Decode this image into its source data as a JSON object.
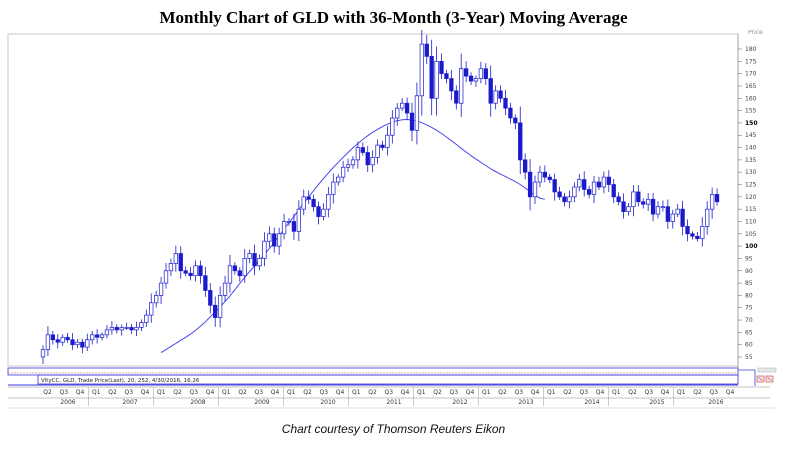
{
  "title": "Monthly Chart of GLD with 36-Month (3-Year) Moving Average",
  "credit": "Chart courtesy of Thomson Reuters Eikon",
  "colors": {
    "candle": "#1a1acc",
    "ma": "#4a4aee",
    "axis": "#777777",
    "lines": "#3a3add"
  },
  "legend": "VltyCC, GLD, Trade Price(Last), 20, 252, 4/30/2016, 16.26",
  "chart_data": {
    "type": "candlestick",
    "ylabel": "Price",
    "ylim": [
      53,
      185
    ],
    "y_ticks": [
      55,
      60,
      65,
      70,
      75,
      80,
      85,
      90,
      95,
      100,
      105,
      110,
      115,
      120,
      125,
      130,
      135,
      140,
      145,
      150,
      155,
      160,
      165,
      170,
      175,
      180
    ],
    "y_bold_ticks": [
      100,
      150
    ],
    "quarter_ticks": [
      "Q2",
      "Q3",
      "Q4",
      "Q1",
      "Q2",
      "Q3",
      "Q4",
      "Q1",
      "Q2",
      "Q3",
      "Q4",
      "Q1",
      "Q2",
      "Q3",
      "Q4",
      "Q1",
      "Q2",
      "Q3",
      "Q4",
      "Q1",
      "Q2",
      "Q3",
      "Q4",
      "Q1",
      "Q2",
      "Q3",
      "Q4",
      "Q1",
      "Q2",
      "Q3",
      "Q4",
      "Q1",
      "Q2",
      "Q3",
      "Q4",
      "Q1",
      "Q2",
      "Q3",
      "Q4",
      "Q1",
      "Q2",
      "Q3",
      "Q4"
    ],
    "year_ticks": [
      "2006",
      "2007",
      "2008",
      "2009",
      "2010",
      "2011",
      "2012",
      "2013",
      "2014",
      "2015",
      "2016"
    ],
    "closes": [
      58,
      64,
      62,
      61,
      63,
      62,
      60,
      61,
      59,
      62,
      64,
      63,
      64,
      66,
      67,
      66,
      67,
      67,
      66,
      67,
      69,
      72,
      77,
      80,
      85,
      90,
      93,
      97,
      90,
      89,
      88,
      92,
      88,
      82,
      76,
      71,
      80,
      85,
      92,
      90,
      88,
      95,
      97,
      92,
      95,
      102,
      105,
      100,
      105,
      110,
      110,
      106,
      115,
      120,
      119,
      116,
      112,
      115,
      121,
      126,
      128,
      132,
      133,
      135,
      140,
      138,
      133,
      136,
      141,
      140,
      145,
      152,
      156,
      158,
      154,
      147,
      161,
      182,
      177,
      160,
      175,
      170,
      168,
      163,
      158,
      172,
      169,
      167,
      168,
      172,
      168,
      158,
      163,
      160,
      156,
      152,
      150,
      135,
      130,
      120,
      126,
      130,
      128,
      127,
      122,
      120,
      118,
      120,
      124,
      127,
      123,
      121,
      126,
      124,
      128,
      125,
      120,
      118,
      114,
      116,
      122,
      118,
      117,
      119,
      113,
      116,
      116,
      110,
      113,
      115,
      108,
      105,
      104,
      103,
      108,
      115,
      121,
      118
    ],
    "moving_average": {
      "name": "36-Month Moving Average",
      "start_index": 24,
      "values": [
        56.8,
        58.0,
        59.3,
        60.5,
        61.8,
        63.0,
        64.3,
        65.8,
        67.5,
        69.3,
        71.3,
        73.3,
        75.3,
        77.5,
        79.8,
        82.3,
        84.8,
        87.3,
        89.7,
        92.0,
        94.3,
        96.5,
        99.0,
        101.5,
        104.2,
        107.0,
        109.6,
        112.0,
        114.8,
        117.4,
        120.0,
        122.5,
        125.0,
        127.4,
        129.7,
        131.9,
        134.0,
        136.0,
        138.0,
        139.9,
        141.6,
        143.3,
        144.8,
        146.2,
        147.4,
        148.5,
        149.5,
        150.3,
        150.9,
        151.3,
        151.4,
        151.2,
        150.8,
        150.1,
        149.2,
        148.2,
        147.0,
        145.7,
        144.3,
        142.8,
        141.3,
        139.7,
        138.2,
        136.7,
        135.3,
        134.0,
        132.7,
        131.4,
        130.3,
        129.2,
        128.2,
        127.2,
        126.2,
        125.0,
        123.6,
        122.0,
        120.6,
        119.5,
        119.0
      ]
    }
  }
}
